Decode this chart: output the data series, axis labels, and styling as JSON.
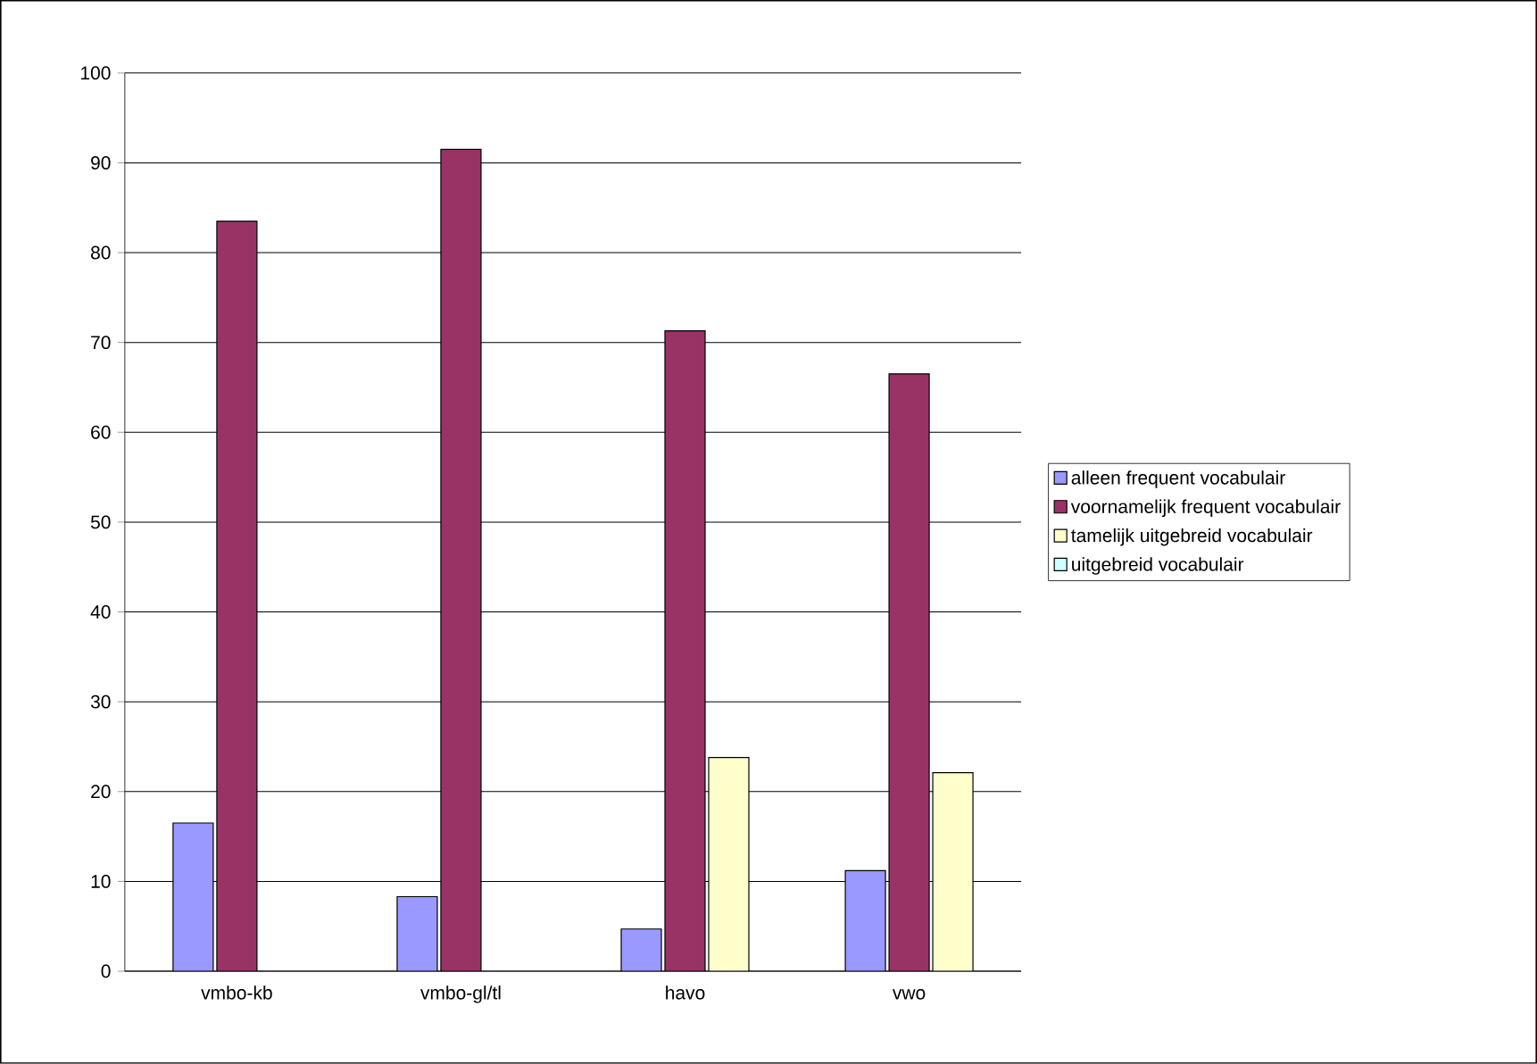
{
  "chart_data": {
    "type": "bar",
    "categories": [
      "vmbo-kb",
      "vmbo-gl/tl",
      "havo",
      "vwo"
    ],
    "series": [
      {
        "name": "alleen frequent vocabulair",
        "color": "#9999ff",
        "values": [
          16.5,
          8.3,
          4.7,
          11.2
        ]
      },
      {
        "name": "voornamelijk frequent vocabulair",
        "color": "#993366",
        "values": [
          83.5,
          91.5,
          71.3,
          66.5
        ]
      },
      {
        "name": "tamelijk uitgebreid vocabulair",
        "color": "#ffffcc",
        "values": [
          null,
          null,
          23.8,
          22.1
        ]
      },
      {
        "name": "uitgebreid vocabulair",
        "color": "#ccffff",
        "values": [
          null,
          null,
          null,
          null
        ]
      }
    ],
    "ylim": [
      0,
      100
    ],
    "yticks": [
      0,
      10,
      20,
      30,
      40,
      50,
      60,
      70,
      80,
      90,
      100
    ],
    "grid": "y",
    "legend": "right"
  }
}
